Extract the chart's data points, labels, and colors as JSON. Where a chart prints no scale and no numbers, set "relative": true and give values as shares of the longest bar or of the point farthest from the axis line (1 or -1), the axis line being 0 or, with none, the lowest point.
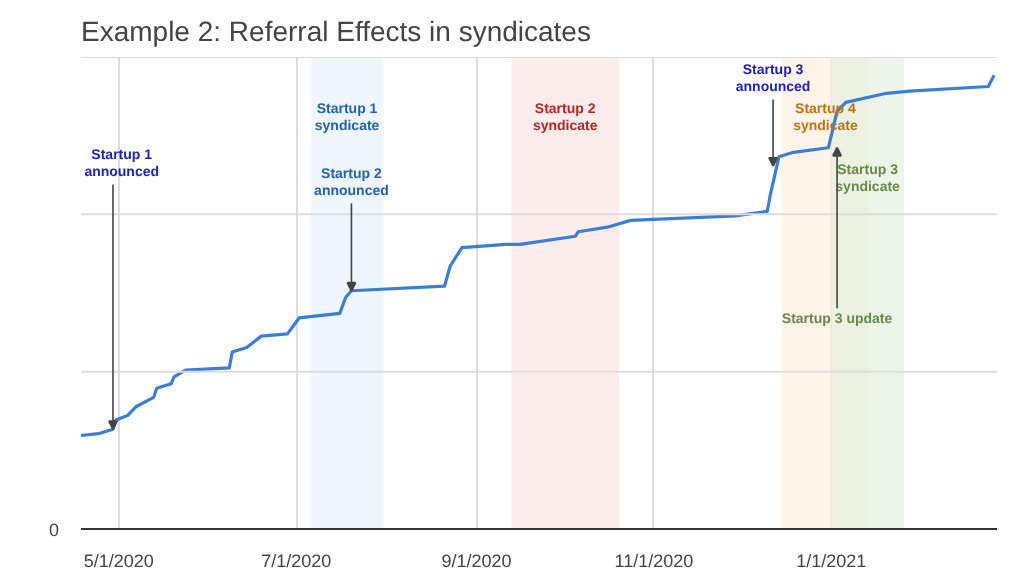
{
  "chart_data": {
    "type": "line",
    "title": "Example 2: Referral Effects in syndicates",
    "relative": true,
    "grid": true,
    "marker": "none",
    "line_style": "solid",
    "x": [
      "2020-04-18",
      "2020-04-24",
      "2020-04-29",
      "2020-04-30",
      "2020-05-04",
      "2020-05-07",
      "2020-05-13",
      "2020-05-14",
      "2020-05-19",
      "2020-05-20",
      "2020-05-24",
      "2020-06-08",
      "2020-06-09",
      "2020-06-14",
      "2020-06-19",
      "2020-06-28",
      "2020-07-02",
      "2020-07-16",
      "2020-07-18",
      "2020-07-20",
      "2020-08-21",
      "2020-08-23",
      "2020-08-27",
      "2020-09-11",
      "2020-09-16",
      "2020-10-05",
      "2020-10-06",
      "2020-10-16",
      "2020-10-24",
      "2020-11-29",
      "2020-12-10",
      "2020-12-11",
      "2020-12-14",
      "2020-12-19",
      "2020-12-31",
      "2021-01-03",
      "2021-01-06",
      "2021-01-20",
      "2021-01-28",
      "2021-02-24",
      "2021-02-26"
    ],
    "series": [
      {
        "color": "#3b7fd4",
        "values": [
          0.206,
          0.21,
          0.22,
          0.24,
          0.25,
          0.27,
          0.29,
          0.31,
          0.32,
          0.335,
          0.35,
          0.355,
          0.39,
          0.4,
          0.425,
          0.43,
          0.465,
          0.475,
          0.51,
          0.525,
          0.535,
          0.58,
          0.62,
          0.627,
          0.627,
          0.645,
          0.655,
          0.665,
          0.68,
          0.69,
          0.7,
          0.735,
          0.82,
          0.83,
          0.84,
          0.92,
          0.94,
          0.96,
          0.965,
          0.975,
          1.0
        ]
      }
    ],
    "xlim": [
      "2020-04-18",
      "2021-02-27"
    ],
    "xticks": [
      {
        "value": "2020-05-01",
        "label": "5/1/2020"
      },
      {
        "value": "2020-07-01",
        "label": "7/1/2020"
      },
      {
        "value": "2020-09-01",
        "label": "9/1/2020"
      },
      {
        "value": "2020-11-01",
        "label": "11/1/2020"
      },
      {
        "value": "2021-01-01",
        "label": "1/1/2021"
      }
    ],
    "bands": [
      {
        "axis": "x",
        "from": "2020-07-06",
        "to": "2020-07-31",
        "label": "Startup 1\nsyndicate",
        "color": "#eaf2fc"
      },
      {
        "axis": "x",
        "from": "2020-09-13",
        "to": "2020-10-20",
        "label": "Startup 2\nsyndicate",
        "color": "#fbe4e3"
      },
      {
        "axis": "x",
        "from": "2020-12-15",
        "to": "2021-01-14",
        "label": "Startup 4\nsyndicate",
        "color": "#fdefdd"
      },
      {
        "axis": "x",
        "from": "2021-01-01",
        "to": "2021-01-26",
        "label": "Startup 3\nsyndicate",
        "color": "#e6efdf"
      }
    ],
    "annotations": [
      "0",
      {
        "text": "Startup 1\nannounced",
        "x": "2020-04-29",
        "y": 0.22
      },
      {
        "text": "Startup 2\nannounced",
        "x": "2020-07-20",
        "y": 0.525
      },
      {
        "text": "Startup 3\nannounced",
        "x": "2020-12-12",
        "y": 0.8
      },
      {
        "text": "Startup 3 update",
        "x": "2021-01-03",
        "y": 0.84
      }
    ]
  }
}
